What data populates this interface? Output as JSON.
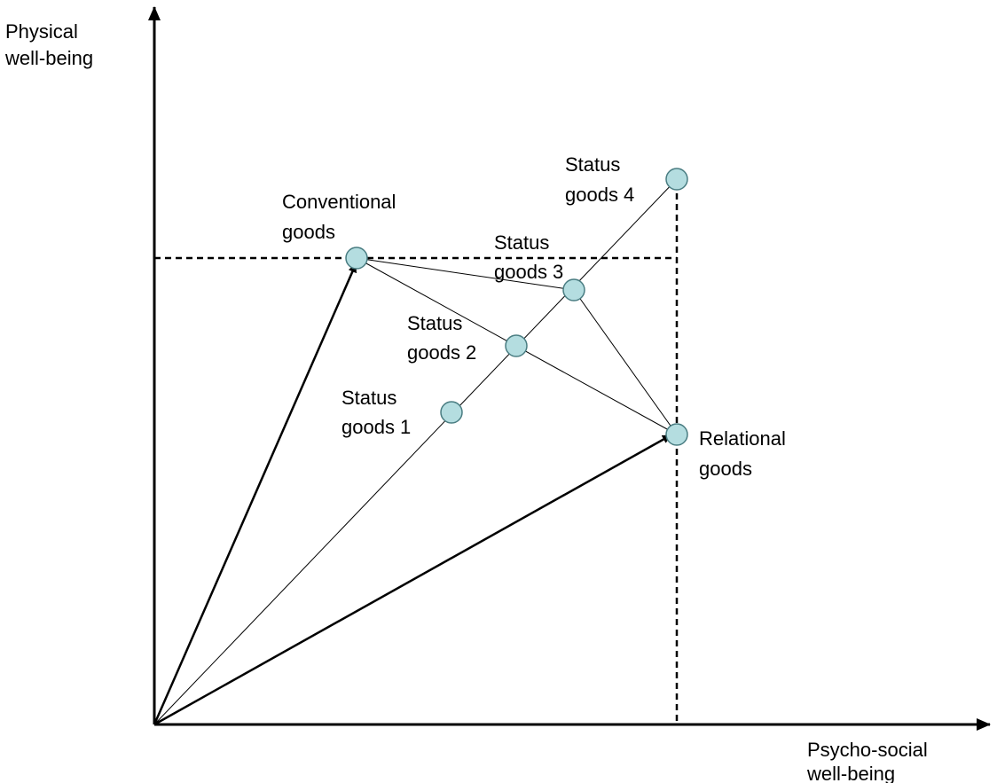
{
  "axes": {
    "y_label": [
      "Physical",
      "well-being"
    ],
    "x_label": [
      "Psycho-social",
      "well-being"
    ]
  },
  "nodes": {
    "conventional": [
      "Conventional",
      "goods"
    ],
    "relational": [
      "Relational",
      "goods"
    ],
    "status_1": [
      "Status",
      "goods 1"
    ],
    "status_2": [
      "Status",
      "goods 2"
    ],
    "status_3": [
      "Status",
      "goods 3"
    ],
    "status_4": [
      "Status",
      "goods 4"
    ]
  },
  "colors": {
    "node_fill": "#b4dde0",
    "node_stroke": "#4a7d82",
    "line": "#000000"
  }
}
